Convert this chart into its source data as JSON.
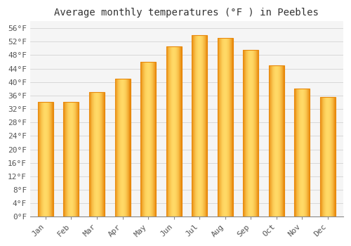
{
  "title": "Average monthly temperatures (°F ) in Peebles",
  "months": [
    "Jan",
    "Feb",
    "Mar",
    "Apr",
    "May",
    "Jun",
    "Jul",
    "Aug",
    "Sep",
    "Oct",
    "Nov",
    "Dec"
  ],
  "values": [
    34,
    34,
    37,
    41,
    46,
    50.5,
    54,
    53,
    49.5,
    45,
    38,
    35.5
  ],
  "ylim": [
    0,
    58
  ],
  "yticks": [
    0,
    4,
    8,
    12,
    16,
    20,
    24,
    28,
    32,
    36,
    40,
    44,
    48,
    52,
    56
  ],
  "ytick_labels": [
    "0°F",
    "4°F",
    "8°F",
    "12°F",
    "16°F",
    "20°F",
    "24°F",
    "28°F",
    "32°F",
    "36°F",
    "40°F",
    "44°F",
    "48°F",
    "52°F",
    "56°F"
  ],
  "bar_color_center": "#FFD966",
  "bar_color_edge": "#E8890C",
  "background_color": "#ffffff",
  "plot_bg_color": "#f5f5f5",
  "grid_color": "#cccccc",
  "title_fontsize": 10,
  "tick_fontsize": 8,
  "title_font": "monospace",
  "tick_font": "monospace",
  "bar_width": 0.6
}
